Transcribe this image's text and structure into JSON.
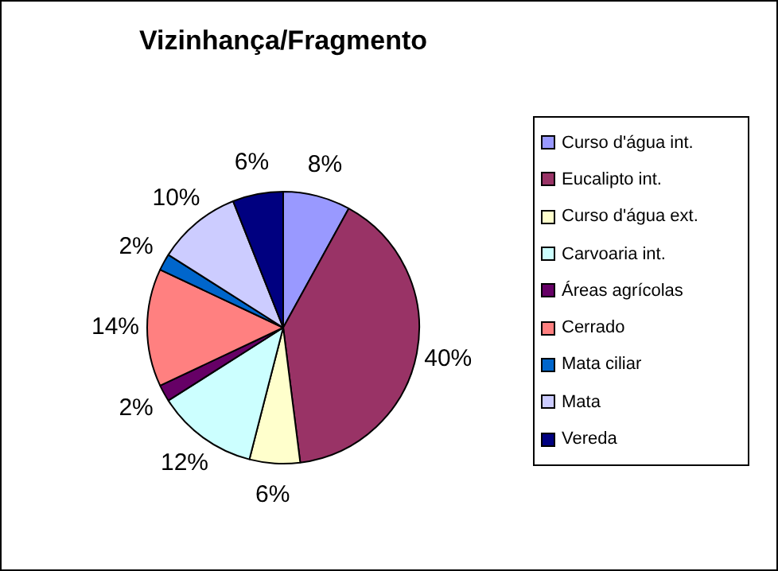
{
  "chart_data": {
    "type": "pie",
    "title": "Vizinhança/Fragmento",
    "categories": [
      "Curso d'água int.",
      "Eucalipto int.",
      "Curso d'água ext.",
      "Carvoaria int.",
      "Áreas agrícolas",
      "Cerrado",
      "Mata ciliar",
      "Mata",
      "Vereda"
    ],
    "values": [
      8,
      40,
      6,
      12,
      2,
      14,
      2,
      10,
      6
    ],
    "value_labels": [
      "8%",
      "40%",
      "6%",
      "12%",
      "2%",
      "14%",
      "2%",
      "10%",
      "6%"
    ],
    "colors": [
      "#9999ff",
      "#993366",
      "#ffffcc",
      "#ccffff",
      "#660066",
      "#ff8080",
      "#0066cc",
      "#ccccff",
      "#000080"
    ],
    "legend": "right"
  }
}
